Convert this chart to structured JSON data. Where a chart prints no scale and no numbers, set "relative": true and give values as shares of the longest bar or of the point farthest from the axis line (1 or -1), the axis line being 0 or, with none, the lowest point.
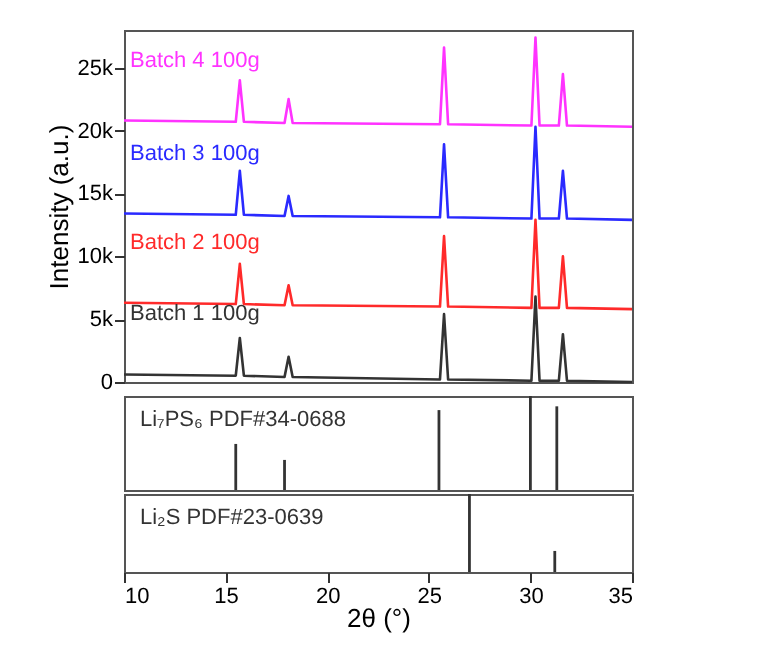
{
  "chart_data": [
    {
      "type": "line",
      "ylabel": "Intensity (a.u.)",
      "xlim": [
        10,
        35
      ],
      "ylim": [
        0,
        28000
      ],
      "yticks": [
        0,
        {
          "value": 5000,
          "label": "5k"
        },
        {
          "value": 10000,
          "label": "10k"
        },
        {
          "value": 15000,
          "label": "15k"
        },
        {
          "value": 20000,
          "label": "20k"
        },
        {
          "value": 25000,
          "label": "25k"
        }
      ],
      "tick_labels": "y",
      "x": [
        10,
        15.5,
        15.7,
        15.9,
        17.9,
        18.1,
        18.3,
        25.55,
        25.75,
        25.95,
        30.05,
        30.25,
        30.45,
        31.4,
        31.6,
        31.8,
        35
      ],
      "series": [
        {
          "name": "Batch 1 100g",
          "color": "#333333",
          "values": [
            600,
            500,
            3500,
            500,
            400,
            2000,
            400,
            200,
            5400,
            200,
            100,
            6800,
            100,
            100,
            3800,
            100,
            0
          ]
        },
        {
          "name": "Batch 2 100g",
          "color": "#ff2a2a",
          "values": [
            6300,
            6200,
            9400,
            6200,
            6100,
            7700,
            6100,
            6000,
            11600,
            6000,
            5900,
            12900,
            5900,
            5900,
            10000,
            5900,
            5800
          ]
        },
        {
          "name": "Batch 3 100g",
          "color": "#2a2aff",
          "values": [
            13400,
            13300,
            16800,
            13300,
            13200,
            14800,
            13200,
            13100,
            18900,
            13100,
            13000,
            20300,
            13000,
            13000,
            16800,
            13000,
            12900
          ]
        },
        {
          "name": "Batch 4 100g",
          "color": "#ff33ff",
          "values": [
            20800,
            20700,
            24000,
            20700,
            20600,
            22500,
            20600,
            20500,
            26600,
            20500,
            20400,
            27400,
            20400,
            20400,
            24500,
            20400,
            20300
          ]
        }
      ]
    },
    {
      "type": "bar",
      "relative": true,
      "xlim": [
        10,
        35
      ],
      "tick_labels": false,
      "x": [
        15.5,
        17.9,
        25.5,
        30.0,
        31.3
      ],
      "series": [
        {
          "name": "Li₇PS₆ PDF#34-0688",
          "color": "#333333",
          "values": [
            0.49,
            0.32,
            0.85,
            1,
            0.89
          ]
        }
      ]
    },
    {
      "type": "bar",
      "relative": true,
      "xlim": [
        10,
        35
      ],
      "xlabel": "2θ (°)",
      "tick_labels": "x",
      "xticks": [
        10,
        15,
        20,
        25,
        30,
        35
      ],
      "x": [
        27.0,
        31.2
      ],
      "series": [
        {
          "name": "Li₂S PDF#23-0639",
          "color": "#333333",
          "values": [
            1,
            0.27
          ]
        }
      ]
    }
  ]
}
